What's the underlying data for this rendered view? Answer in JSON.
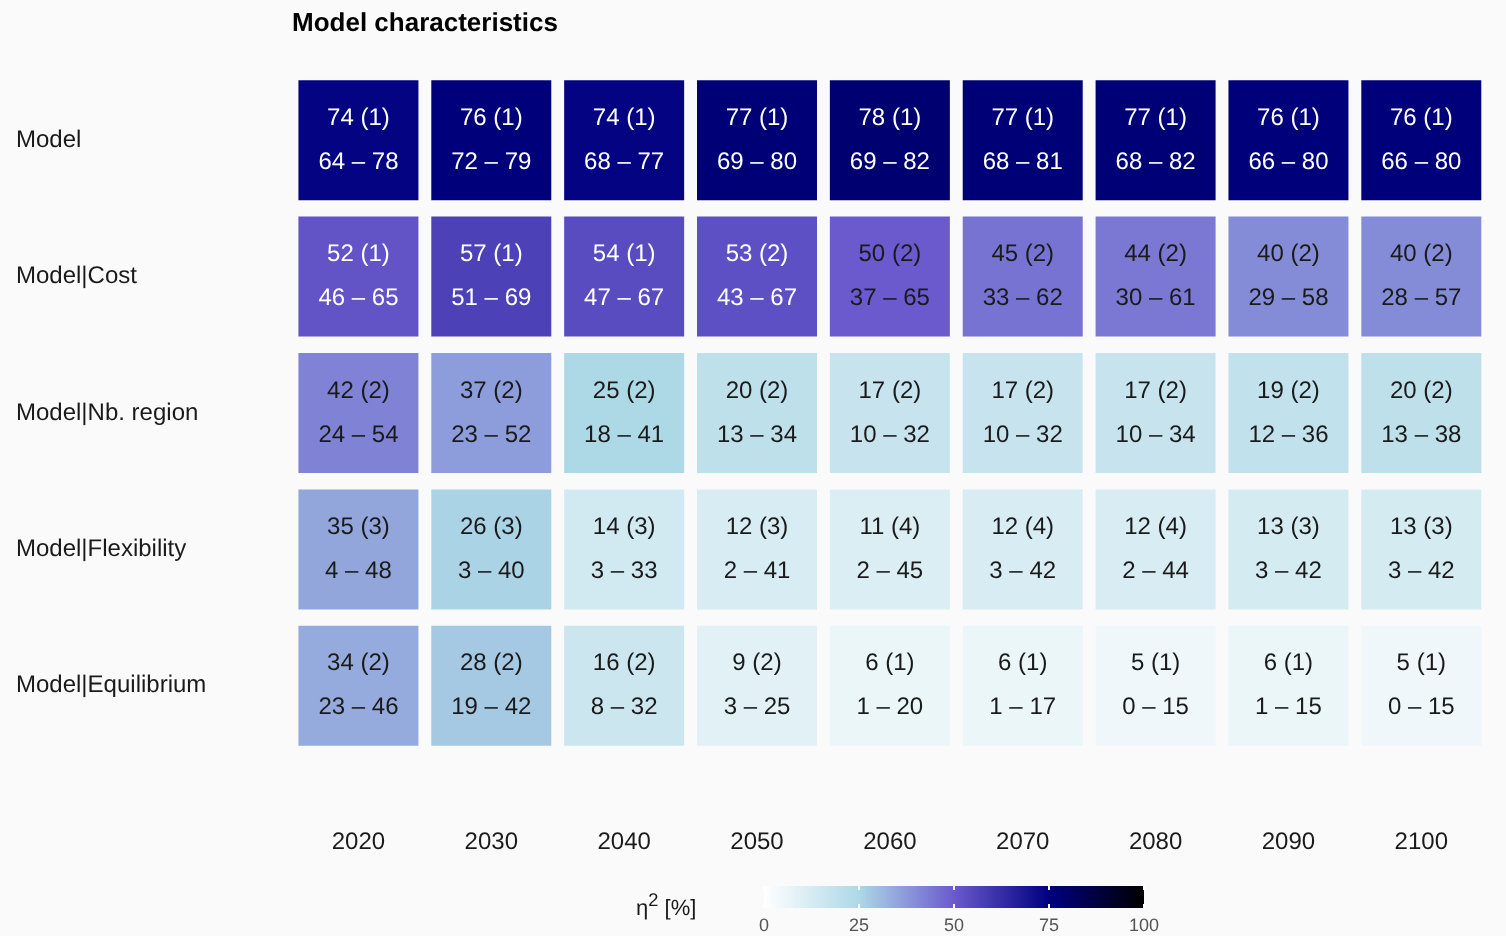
{
  "chart_data": {
    "type": "heatmap",
    "title": "Model characteristics",
    "clabel": "η$^{2}$ [%]",
    "categories": [
      "2020",
      "2030",
      "2040",
      "2050",
      "2060",
      "2070",
      "2080",
      "2090",
      "2100"
    ],
    "y_categories": [
      "Model",
      "Model|Cost",
      "Model|Nb. region",
      "Model|Flexibility",
      "Model|Equilibrium"
    ],
    "cells": [
      [
        74,
        76,
        74,
        77,
        78,
        77,
        77,
        76,
        76
      ],
      [
        52,
        57,
        54,
        53,
        50,
        45,
        44,
        40,
        40
      ],
      [
        42,
        37,
        25,
        20,
        17,
        17,
        17,
        19,
        20
      ],
      [
        35,
        26,
        14,
        12,
        11,
        12,
        12,
        13,
        13
      ],
      [
        34,
        28,
        16,
        9,
        6,
        6,
        5,
        6,
        5
      ]
    ],
    "cell_labels": [
      [
        "74 (1)\n64 – 78",
        "76 (1)\n72 – 79",
        "74 (1)\n68 – 77",
        "77 (1)\n69 – 80",
        "78 (1)\n69 – 82",
        "77 (1)\n68 – 81",
        "77 (1)\n68 – 82",
        "76 (1)\n66 – 80",
        "76 (1)\n66 – 80"
      ],
      [
        "52 (1)\n46 – 65",
        "57 (1)\n51 – 69",
        "54 (1)\n47 – 67",
        "53 (2)\n43 – 67",
        "50 (2)\n37 – 65",
        "45 (2)\n33 – 62",
        "44 (2)\n30 – 61",
        "40 (2)\n29 – 58",
        "40 (2)\n28 – 57"
      ],
      [
        "42 (2)\n24 – 54",
        "37 (2)\n23 – 52",
        "25 (2)\n18 – 41",
        "20 (2)\n13 – 34",
        "17 (2)\n10 – 32",
        "17 (2)\n10 – 32",
        "17 (2)\n10 – 34",
        "19 (2)\n12 – 36",
        "20 (2)\n13 – 38"
      ],
      [
        "35 (3)\n4 – 48",
        "26 (3)\n3 – 40",
        "14 (3)\n3 – 33",
        "12 (3)\n2 – 41",
        "11 (4)\n2 – 45",
        "12 (4)\n3 – 42",
        "12 (4)\n2 – 44",
        "13 (3)\n3 – 42",
        "13 (3)\n3 – 42"
      ],
      [
        "34 (2)\n23 – 46",
        "28 (2)\n19 – 42",
        "16 (2)\n8 – 32",
        "9 (2)\n3 – 25",
        "6 (1)\n1 – 20",
        "6 (1)\n1 – 17",
        "5 (1)\n0 – 15",
        "6 (1)\n1 – 15",
        "5 (1)\n0 – 15"
      ]
    ],
    "clim": [
      0,
      100
    ],
    "cticks": [
      0,
      25,
      50,
      75,
      100
    ]
  }
}
